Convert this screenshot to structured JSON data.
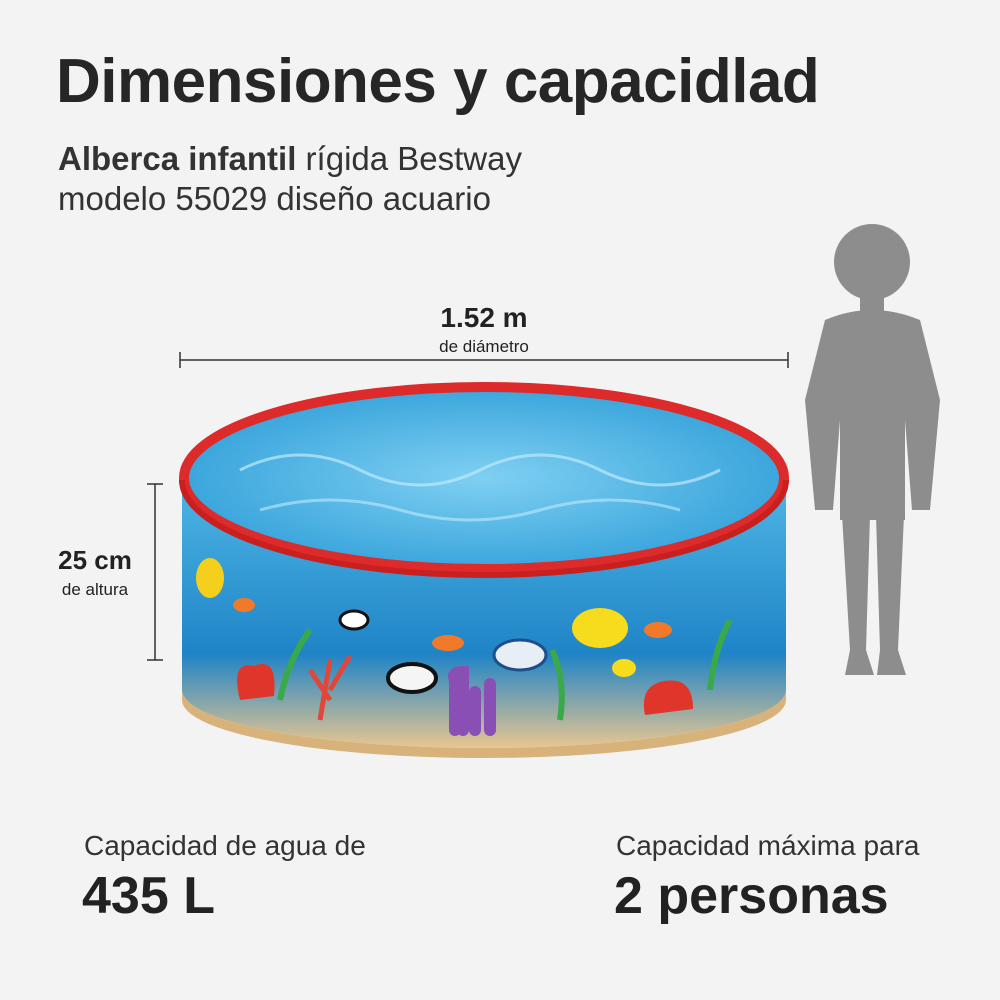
{
  "header": {
    "title": "Dimensiones y capacidlad",
    "subtitle_bold": "Alberca infantil",
    "subtitle_rest": " rígida Bestway",
    "subtitle_line2": "modelo 55029 diseño acuario"
  },
  "dimensions": {
    "diameter": "1.52 m",
    "diameter_label": "de diámetro",
    "height": "25 cm",
    "height_label": "de altura"
  },
  "capacity": {
    "water_label": "Capacidad de agua de",
    "water_value": "435 L",
    "people_label": "Capacidad máxima para",
    "people_value": "2 personas"
  }
}
